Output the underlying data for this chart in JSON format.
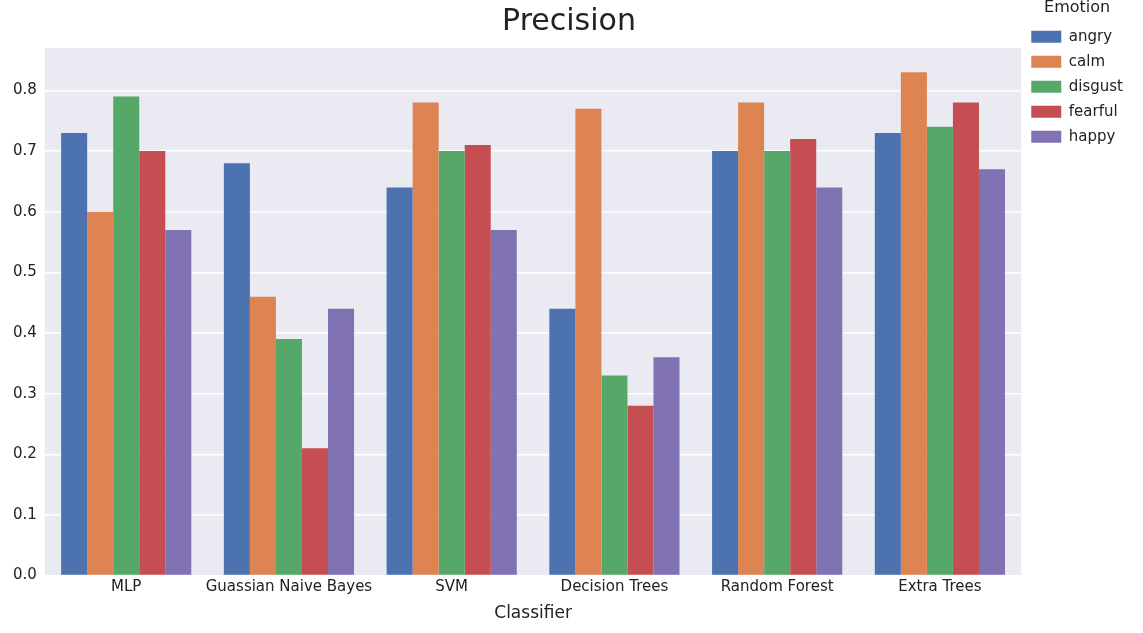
{
  "chart_data": {
    "type": "bar",
    "title": "Precision",
    "xlabel": "Classifier",
    "legend_title": "Emotion",
    "categories": [
      "MLP",
      "Guassian Naive Bayes",
      "SVM",
      "Decision Trees",
      "Random Forest",
      "Extra Trees"
    ],
    "series": [
      {
        "name": "angry",
        "color": "#4c72b0",
        "values": [
          0.73,
          0.68,
          0.64,
          0.44,
          0.7,
          0.73
        ]
      },
      {
        "name": "calm",
        "color": "#dd8452",
        "values": [
          0.6,
          0.46,
          0.78,
          0.77,
          0.78,
          0.83
        ]
      },
      {
        "name": "disgust",
        "color": "#55a868",
        "values": [
          0.79,
          0.39,
          0.7,
          0.33,
          0.7,
          0.74
        ]
      },
      {
        "name": "fearful",
        "color": "#c44e52",
        "values": [
          0.7,
          0.21,
          0.71,
          0.28,
          0.72,
          0.78
        ]
      },
      {
        "name": "happy",
        "color": "#8172b3",
        "values": [
          0.57,
          0.44,
          0.57,
          0.36,
          0.64,
          0.67
        ]
      }
    ],
    "ylim": [
      0,
      0.87
    ],
    "yticks": [
      "0.0",
      0.1,
      0.2,
      0.3,
      0.4,
      0.5,
      0.6,
      0.7,
      0.8
    ],
    "grid": "y",
    "legend": "top right"
  }
}
